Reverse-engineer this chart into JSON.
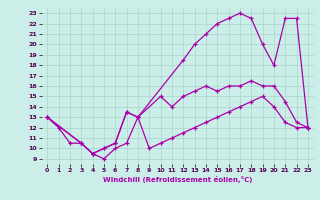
{
  "xlabel": "Windchill (Refroidissement éolien,°C)",
  "bg_color": "#cceee8",
  "grid_color": "#aad4cc",
  "line_color": "#aa00aa",
  "xlim": [
    -0.5,
    23.5
  ],
  "ylim": [
    8.5,
    23.5
  ],
  "xticks": [
    0,
    1,
    2,
    3,
    4,
    5,
    6,
    7,
    8,
    9,
    10,
    11,
    12,
    13,
    14,
    15,
    16,
    17,
    18,
    19,
    20,
    21,
    22,
    23
  ],
  "yticks": [
    9,
    10,
    11,
    12,
    13,
    14,
    15,
    16,
    17,
    18,
    19,
    20,
    21,
    22,
    23
  ],
  "line1_x": [
    0,
    1,
    2,
    3,
    4,
    5,
    6,
    7,
    8,
    12,
    13,
    14,
    15,
    16,
    17,
    18,
    19,
    20,
    21,
    22,
    23
  ],
  "line1_y": [
    13,
    12,
    10.5,
    10.5,
    9.5,
    9,
    10,
    10.5,
    13,
    18.5,
    20,
    21,
    22,
    22.5,
    23,
    22.5,
    20,
    18,
    22.5,
    22.5,
    12
  ],
  "line2_x": [
    0,
    3,
    4,
    5,
    6,
    7,
    8,
    10,
    11,
    12,
    13,
    14,
    15,
    16,
    17,
    18,
    19,
    20,
    21,
    22,
    23
  ],
  "line2_y": [
    13,
    10.5,
    9.5,
    10,
    10.5,
    13.5,
    13,
    15,
    14,
    15,
    15.5,
    16,
    15.5,
    16,
    16,
    16.5,
    16,
    16,
    14.5,
    12.5,
    12
  ],
  "line3_x": [
    0,
    3,
    4,
    5,
    6,
    7,
    8,
    9,
    10,
    11,
    12,
    13,
    14,
    15,
    16,
    17,
    18,
    19,
    20,
    21,
    22,
    23
  ],
  "line3_y": [
    13,
    10.5,
    9.5,
    10,
    10.5,
    13.5,
    13,
    10,
    10.5,
    11,
    11.5,
    12,
    12.5,
    13,
    13.5,
    14,
    14.5,
    15,
    14,
    12.5,
    12,
    12
  ]
}
